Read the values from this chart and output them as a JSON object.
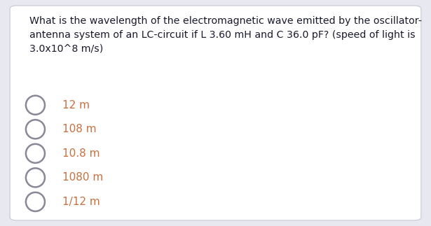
{
  "background_color": "#e8e8f0",
  "card_color": "#ffffff",
  "question": "What is the wavelength of the electromagnetic wave emitted by the oscillator-\nantenna system of an LC-circuit if L 3.60 mH and C 36.0 pF? (speed of light is\n3.0x10^8 m/s)",
  "options": [
    "12 m",
    "108 m",
    "10.8 m",
    "1080 m",
    "1/12 m"
  ],
  "question_color": "#1a1a2e",
  "option_color": "#c87040",
  "question_fontsize": 10.2,
  "option_fontsize": 11.0,
  "card_border_color": "#c8c8d8",
  "circle_edge_color": "#888898",
  "fig_width": 6.15,
  "fig_height": 3.23,
  "circle_size_pts": 13.0
}
